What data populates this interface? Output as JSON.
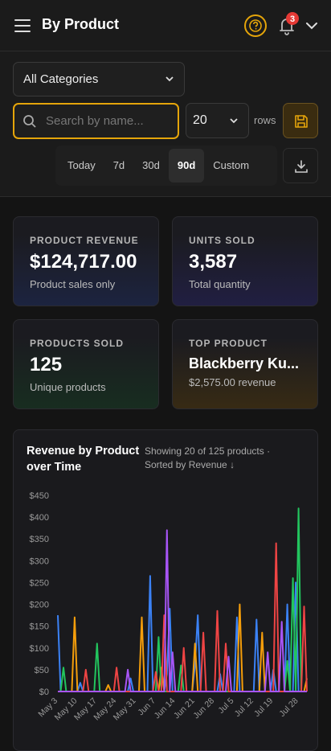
{
  "header": {
    "title": "By Product",
    "notification_count": 3
  },
  "filters": {
    "category": "All Categories",
    "search_placeholder": "Search by name...",
    "rows_value": "20",
    "rows_label": "rows",
    "ranges": [
      "Today",
      "7d",
      "30d",
      "90d",
      "Custom"
    ],
    "active_range": 3
  },
  "cards": [
    {
      "label": "PRODUCT REVENUE",
      "value": "$124,717.00",
      "sub": "Product sales only"
    },
    {
      "label": "UNITS SOLD",
      "value": "3,587",
      "sub": "Total quantity"
    },
    {
      "label": "PRODUCTS SOLD",
      "value": "125",
      "sub": "Unique products"
    },
    {
      "label": "TOP PRODUCT",
      "value": "Blackberry Ku...",
      "sub": "$2,575.00 revenue"
    }
  ],
  "chart_data": {
    "type": "line",
    "title": "Revenue by Product over Time",
    "subtitle": "Showing 20 of 125 products · Sorted by Revenue ↓",
    "categories": [
      "May 3",
      null,
      null,
      null,
      null,
      null,
      null,
      "May 10",
      null,
      null,
      null,
      null,
      null,
      null,
      "May 17",
      null,
      null,
      null,
      null,
      null,
      null,
      "May 24",
      null,
      null,
      null,
      null,
      null,
      null,
      "May 31",
      null,
      null,
      null,
      null,
      null,
      null,
      "Jun 7",
      null,
      null,
      null,
      null,
      null,
      null,
      "Jun 14",
      null,
      null,
      null,
      null,
      null,
      null,
      "Jun 21",
      null,
      null,
      null,
      null,
      null,
      null,
      "Jun 28",
      null,
      null,
      null,
      null,
      null,
      null,
      "Jul 5",
      null,
      null,
      null,
      null,
      null,
      null,
      "Jul 12",
      null,
      null,
      null,
      null,
      null,
      null,
      "Jul 19",
      null,
      null,
      null,
      null,
      null,
      null,
      null,
      null,
      "Jul 28",
      null,
      null,
      null
    ],
    "series": [
      {
        "color": "#3b82f6",
        "values": [
          175,
          0,
          0,
          0,
          0,
          0,
          0,
          0,
          20,
          0,
          0,
          0,
          0,
          0,
          0,
          0,
          0,
          0,
          0,
          0,
          0,
          0,
          0,
          0,
          0,
          0,
          30,
          0,
          0,
          0,
          0,
          0,
          0,
          265,
          0,
          0,
          0,
          0,
          0,
          40,
          190,
          0,
          0,
          0,
          0,
          0,
          0,
          0,
          0,
          60,
          175,
          0,
          0,
          0,
          0,
          0,
          0,
          0,
          40,
          0,
          0,
          0,
          0,
          0,
          170,
          0,
          0,
          0,
          0,
          0,
          0,
          165,
          0,
          0,
          0,
          0,
          0,
          50,
          0,
          0,
          0,
          0,
          200,
          0,
          0,
          250,
          0,
          0,
          0,
          0
        ]
      },
      {
        "color": "#f59e0b",
        "values": [
          0,
          0,
          0,
          0,
          0,
          0,
          170,
          0,
          0,
          0,
          0,
          0,
          0,
          0,
          0,
          0,
          0,
          0,
          15,
          0,
          0,
          0,
          0,
          0,
          0,
          0,
          0,
          0,
          0,
          0,
          170,
          0,
          0,
          0,
          0,
          0,
          0,
          55,
          0,
          0,
          0,
          0,
          0,
          0,
          0,
          0,
          0,
          0,
          0,
          110,
          0,
          0,
          0,
          0,
          0,
          0,
          0,
          0,
          0,
          0,
          0,
          0,
          0,
          0,
          0,
          200,
          0,
          0,
          0,
          0,
          0,
          0,
          0,
          135,
          0,
          0,
          0,
          0,
          0,
          0,
          0,
          0,
          0,
          0,
          0,
          0,
          0,
          0,
          0,
          30
        ]
      },
      {
        "color": "#22c55e",
        "values": [
          0,
          0,
          55,
          0,
          0,
          0,
          0,
          0,
          0,
          0,
          0,
          0,
          0,
          0,
          110,
          0,
          0,
          0,
          0,
          0,
          0,
          0,
          0,
          0,
          0,
          0,
          0,
          0,
          0,
          0,
          0,
          0,
          0,
          0,
          0,
          0,
          125,
          0,
          0,
          0,
          0,
          0,
          0,
          0,
          60,
          0,
          0,
          0,
          0,
          0,
          0,
          0,
          0,
          0,
          0,
          0,
          0,
          0,
          0,
          0,
          0,
          0,
          0,
          0,
          0,
          0,
          0,
          0,
          0,
          0,
          0,
          0,
          0,
          0,
          0,
          0,
          0,
          0,
          0,
          0,
          0,
          0,
          70,
          0,
          260,
          0,
          420,
          0,
          0,
          0
        ]
      },
      {
        "color": "#ef4444",
        "values": [
          0,
          0,
          0,
          0,
          0,
          0,
          0,
          0,
          0,
          0,
          50,
          0,
          0,
          0,
          0,
          0,
          0,
          0,
          0,
          0,
          0,
          55,
          0,
          0,
          0,
          0,
          0,
          0,
          0,
          0,
          0,
          0,
          0,
          0,
          0,
          45,
          0,
          0,
          175,
          0,
          0,
          0,
          0,
          0,
          0,
          100,
          0,
          0,
          0,
          0,
          0,
          0,
          135,
          0,
          0,
          0,
          0,
          185,
          0,
          0,
          110,
          0,
          0,
          0,
          0,
          0,
          0,
          0,
          0,
          0,
          0,
          0,
          0,
          0,
          0,
          0,
          0,
          0,
          340,
          0,
          0,
          0,
          0,
          0,
          0,
          0,
          0,
          0,
          195,
          0
        ]
      },
      {
        "color": "#a855f7",
        "values": [
          0,
          0,
          0,
          0,
          0,
          0,
          0,
          0,
          0,
          0,
          0,
          0,
          0,
          0,
          0,
          0,
          0,
          0,
          0,
          0,
          0,
          0,
          0,
          0,
          0,
          50,
          0,
          0,
          0,
          0,
          0,
          0,
          0,
          0,
          0,
          0,
          0,
          0,
          0,
          370,
          0,
          90,
          0,
          0,
          0,
          0,
          0,
          0,
          0,
          0,
          0,
          0,
          0,
          0,
          0,
          0,
          0,
          0,
          0,
          0,
          0,
          80,
          0,
          0,
          0,
          0,
          0,
          0,
          0,
          0,
          0,
          0,
          0,
          0,
          0,
          90,
          0,
          0,
          0,
          0,
          160,
          0,
          0,
          0,
          0,
          0,
          0,
          0,
          0,
          0
        ]
      }
    ],
    "ylim": [
      0,
      450
    ],
    "yticks": [
      {
        "value": 0,
        "label": "$0"
      },
      {
        "value": 50,
        "label": "$50"
      },
      {
        "value": 100,
        "label": "$100"
      },
      {
        "value": 150,
        "label": "$150"
      },
      {
        "value": 200,
        "label": "$200"
      },
      {
        "value": 250,
        "label": "$250"
      },
      {
        "value": 300,
        "label": "$300"
      },
      {
        "value": 350,
        "label": "$350"
      },
      {
        "value": 400,
        "label": "$400"
      },
      {
        "value": 450,
        "label": "$450"
      }
    ],
    "grid": false
  }
}
